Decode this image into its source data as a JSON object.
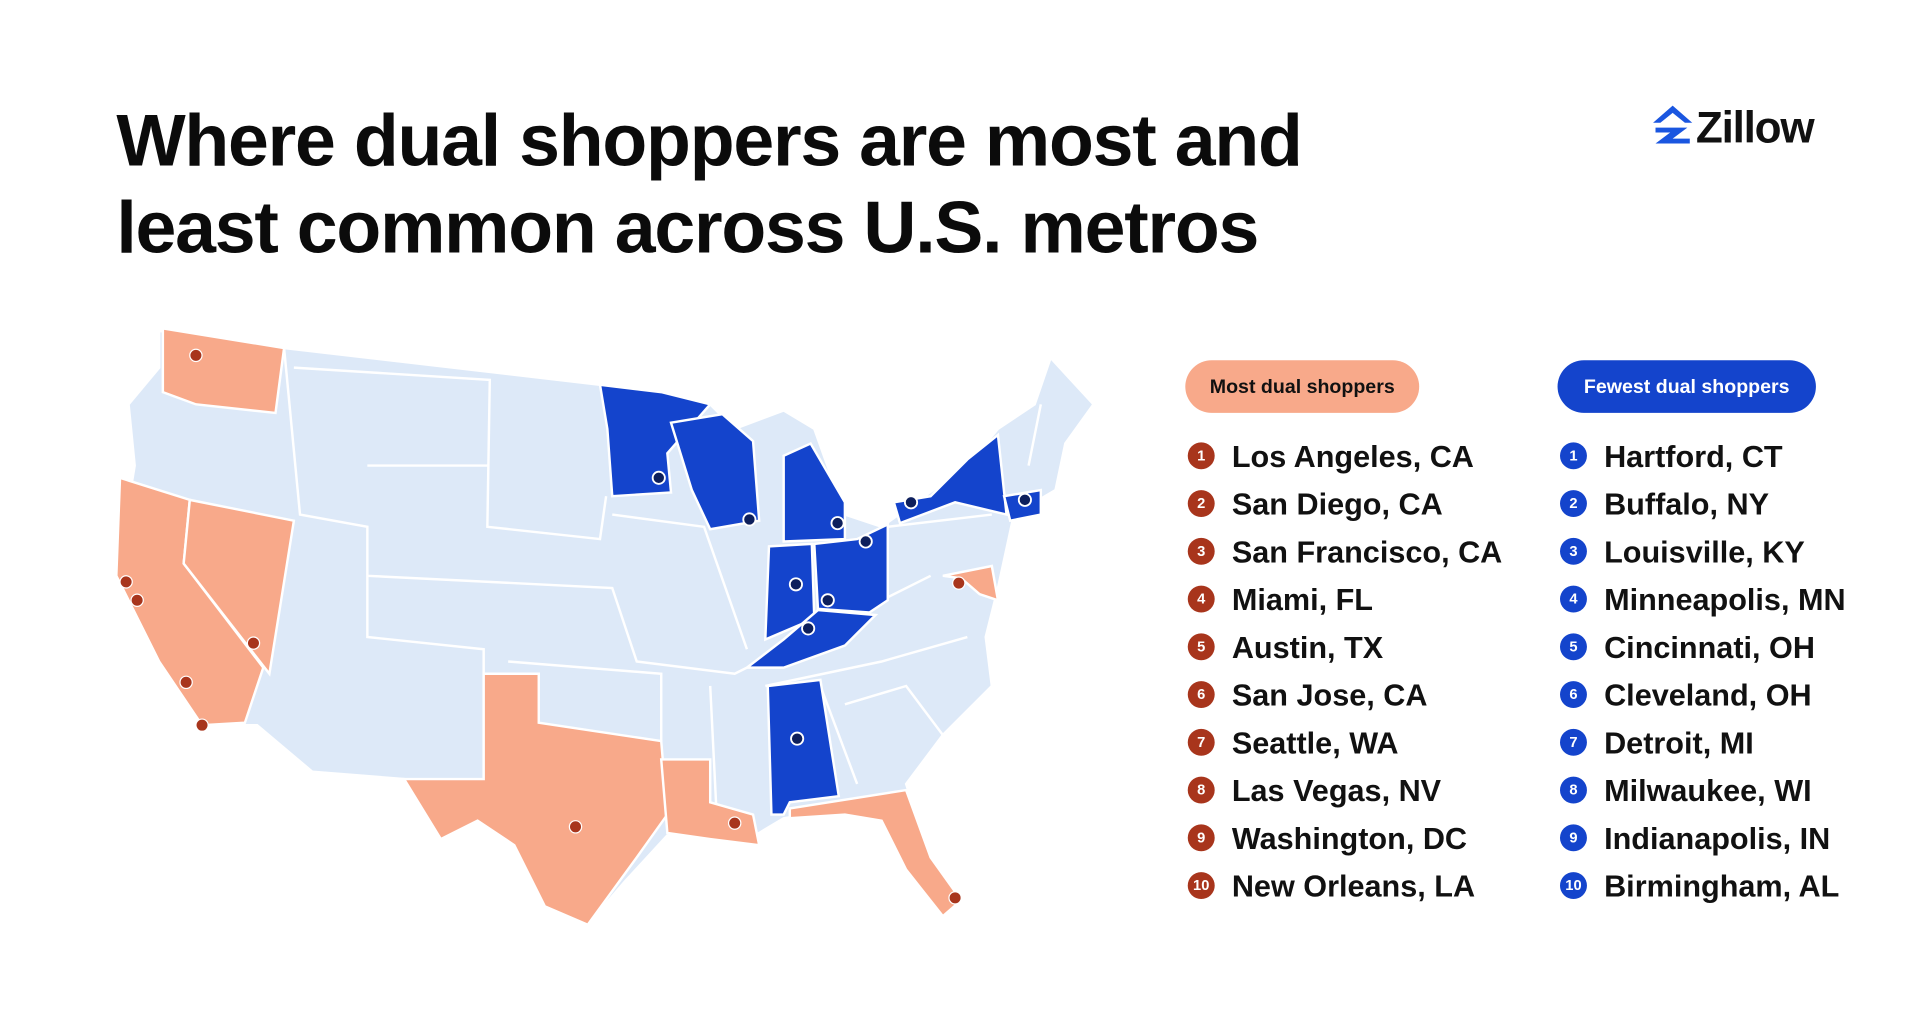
{
  "logo": "Zillow",
  "title": [
    "Where dual shoppers are most and",
    "least common across U.S. metros"
  ],
  "most": {
    "label": "Most dual shoppers",
    "items": [
      {
        "rank": 1,
        "name": "Los Angeles, CA"
      },
      {
        "rank": 2,
        "name": "San Diego, CA"
      },
      {
        "rank": 3,
        "name": "San Francisco, CA"
      },
      {
        "rank": 4,
        "name": "Miami, FL"
      },
      {
        "rank": 5,
        "name": "Austin, TX"
      },
      {
        "rank": 6,
        "name": "San Jose, CA"
      },
      {
        "rank": 7,
        "name": "Seattle, WA"
      },
      {
        "rank": 8,
        "name": "Las Vegas, NV"
      },
      {
        "rank": 9,
        "name": "Washington, DC"
      },
      {
        "rank": 10,
        "name": "New Orleans, LA"
      }
    ]
  },
  "fewest": {
    "label": "Fewest dual shoppers",
    "items": [
      {
        "rank": 1,
        "name": "Hartford, CT"
      },
      {
        "rank": 2,
        "name": "Buffalo, NY"
      },
      {
        "rank": 3,
        "name": "Louisville, KY"
      },
      {
        "rank": 4,
        "name": "Minneapolis, MN"
      },
      {
        "rank": 5,
        "name": "Cincinnati, OH"
      },
      {
        "rank": 6,
        "name": "Cleveland, OH"
      },
      {
        "rank": 7,
        "name": "Detroit, MI"
      },
      {
        "rank": 8,
        "name": "Milwaukee, WI"
      },
      {
        "rank": 9,
        "name": "Indianapolis, IN"
      },
      {
        "rank": 10,
        "name": "Birmingham, AL"
      }
    ]
  }
}
